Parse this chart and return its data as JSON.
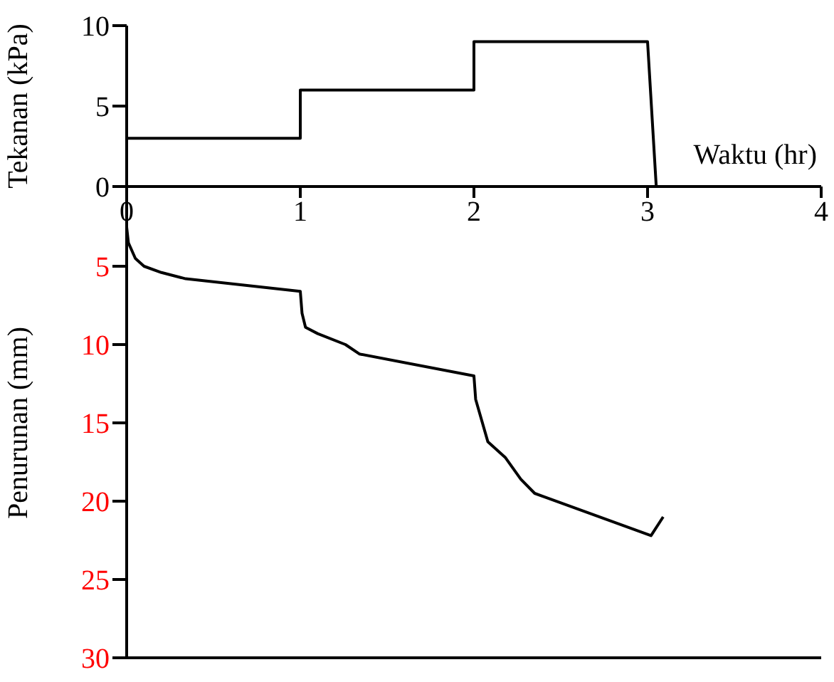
{
  "chart_data": [
    {
      "type": "line",
      "xlabel": "Waktu (hr)",
      "ylabel": "Tekanan (kPa)",
      "xlim": [
        0,
        4
      ],
      "xticks": [
        0,
        1,
        2,
        3,
        4
      ],
      "ylim": [
        0,
        10
      ],
      "yticks": [
        0,
        5,
        10
      ],
      "grid": false,
      "marker": "none",
      "series": [
        {
          "color": "#000000",
          "x": [
            0,
            1,
            1,
            2,
            2,
            3,
            3.05
          ],
          "values": [
            3,
            3,
            6,
            6,
            9,
            9,
            0
          ]
        }
      ]
    },
    {
      "type": "line",
      "ylabel": "Penurunan (mm)",
      "xlim": [
        0,
        4
      ],
      "xticks": [
        0,
        1,
        2,
        3,
        4
      ],
      "ylim": [
        30,
        0
      ],
      "yticks": [
        5,
        10,
        15,
        20,
        25,
        30
      ],
      "tick_labels": "y",
      "grid": false,
      "marker": "none",
      "series": [
        {
          "color": "#000000",
          "x": [
            0,
            0.01,
            0.05,
            0.1,
            0.2,
            0.34,
            1,
            1.01,
            1.03,
            1.1,
            1.26,
            1.34,
            2.0,
            2.01,
            2.08,
            2.18,
            2.27,
            2.35,
            3.02,
            3.09
          ],
          "values": [
            2.5,
            3.5,
            4.5,
            5.0,
            5.4,
            5.8,
            6.6,
            8.0,
            8.9,
            9.3,
            10.0,
            10.6,
            12.0,
            13.5,
            16.2,
            17.2,
            18.6,
            19.5,
            22.2,
            21.0
          ]
        }
      ]
    }
  ]
}
